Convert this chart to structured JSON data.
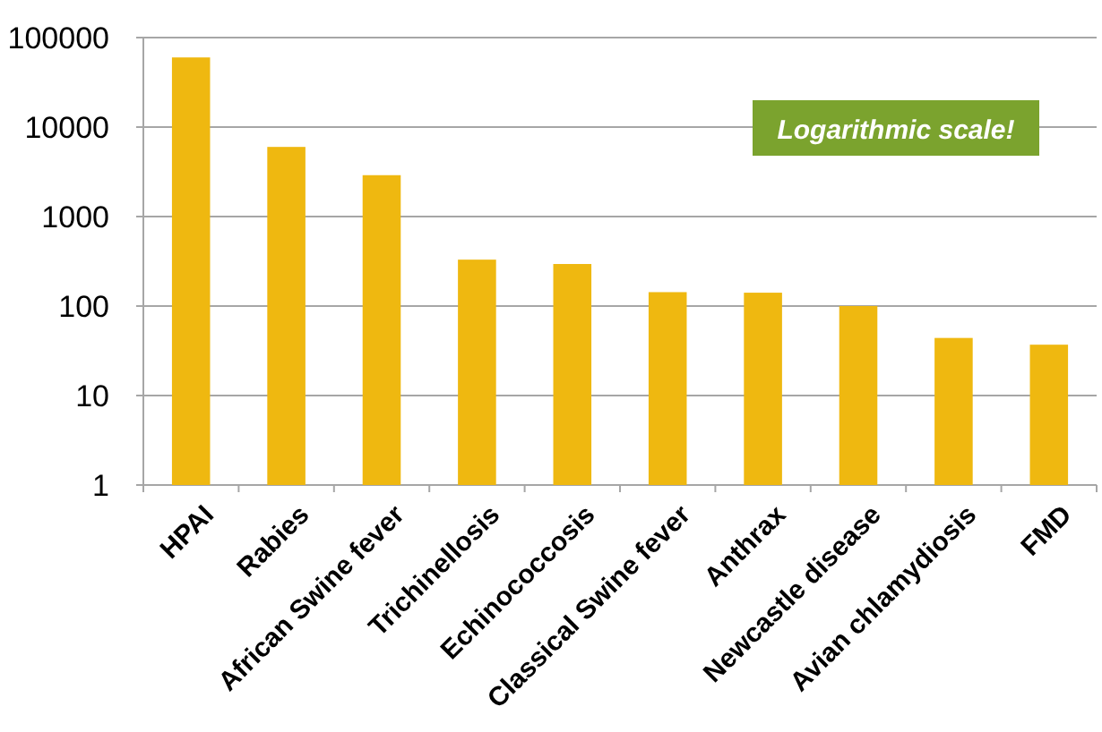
{
  "chart_data": {
    "type": "bar",
    "categories": [
      "HPAI",
      "Rabies",
      "African Swine fever",
      "Trichinellosis",
      "Echinococcosis",
      "Classical Swine fever",
      "Anthrax",
      "Newcastle disease",
      "Avian chlamydiosis",
      "FMD"
    ],
    "values": [
      60000,
      6000,
      2900,
      330,
      295,
      143,
      141,
      100,
      44,
      37
    ],
    "color": "#efb810",
    "log": true,
    "ylim": [
      1,
      100000
    ],
    "yticks": [
      1,
      10,
      100,
      1000,
      10000,
      100000
    ],
    "grid": "y",
    "annotations": [
      "Logarithmic scale!"
    ]
  }
}
